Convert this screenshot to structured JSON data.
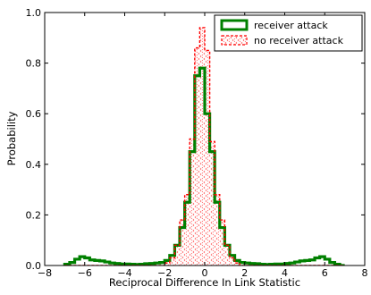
{
  "chart_data": {
    "type": "histogram",
    "xlabel": "Reciprocal Difference In Link Statistic",
    "ylabel": "Probability",
    "xlim": [
      -8,
      8
    ],
    "ylim": [
      0,
      1.0
    ],
    "x_ticks": [
      -8,
      -6,
      -4,
      -2,
      0,
      2,
      4,
      6,
      8
    ],
    "x_tick_labels": [
      "−8",
      "−6",
      "−4",
      "−2",
      "0",
      "2",
      "4",
      "6",
      "8"
    ],
    "y_ticks": [
      0,
      0.2,
      0.4,
      0.6,
      0.8,
      1.0
    ],
    "y_tick_labels": [
      "0.0",
      "0.2",
      "0.4",
      "0.6",
      "0.8",
      "1.0"
    ],
    "legend_position": "top-right",
    "bin_edges": [
      -7,
      -6.75,
      -6.5,
      -6.25,
      -6,
      -5.75,
      -5.5,
      -5.25,
      -5,
      -4.75,
      -4.5,
      -4.25,
      -4,
      -3.75,
      -3.5,
      -3.25,
      -3,
      -2.75,
      -2.5,
      -2.25,
      -2,
      -1.75,
      -1.5,
      -1.25,
      -1,
      -0.75,
      -0.5,
      -0.25,
      0,
      0.25,
      0.5,
      0.75,
      1,
      1.25,
      1.5,
      1.75,
      2,
      2.25,
      2.5,
      2.75,
      3,
      3.25,
      3.5,
      3.75,
      4,
      4.25,
      4.5,
      4.75,
      5,
      5.25,
      5.5,
      5.75,
      6,
      6.25,
      6.5,
      6.75,
      7
    ],
    "series": [
      {
        "name": "receiver attack",
        "color": "#008000",
        "style": "solid-step",
        "values": [
          0.005,
          0.012,
          0.025,
          0.035,
          0.03,
          0.022,
          0.02,
          0.018,
          0.014,
          0.01,
          0.008,
          0.006,
          0.006,
          0.005,
          0.004,
          0.005,
          0.007,
          0.008,
          0.01,
          0.012,
          0.02,
          0.04,
          0.08,
          0.15,
          0.25,
          0.45,
          0.75,
          0.78,
          0.6,
          0.45,
          0.25,
          0.15,
          0.08,
          0.04,
          0.02,
          0.012,
          0.01,
          0.008,
          0.007,
          0.005,
          0.004,
          0.005,
          0.006,
          0.006,
          0.008,
          0.01,
          0.014,
          0.018,
          0.02,
          0.022,
          0.03,
          0.035,
          0.025,
          0.012,
          0.005,
          0.0
        ]
      },
      {
        "name": "no receiver attack",
        "color": "#ff0000",
        "style": "dashed-step-hatched",
        "values": [
          0,
          0,
          0,
          0,
          0,
          0,
          0,
          0,
          0,
          0,
          0,
          0,
          0,
          0,
          0,
          0,
          0,
          0,
          0,
          0,
          0.01,
          0.03,
          0.08,
          0.18,
          0.28,
          0.5,
          0.86,
          0.94,
          0.85,
          0.49,
          0.28,
          0.18,
          0.08,
          0.03,
          0.01,
          0,
          0,
          0,
          0,
          0,
          0,
          0,
          0,
          0,
          0,
          0,
          0,
          0,
          0,
          0,
          0,
          0,
          0,
          0,
          0,
          0
        ]
      }
    ]
  }
}
